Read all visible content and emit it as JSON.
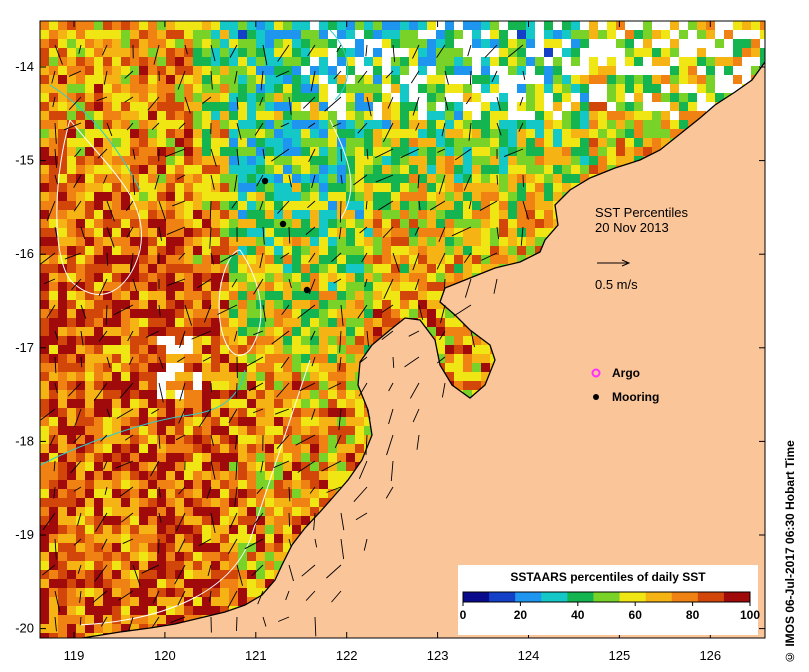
{
  "map": {
    "title": "SST Percentiles",
    "date": "20 Nov 2013",
    "vector_scale_label": "0.5 m/s",
    "legend": {
      "argo": "Argo",
      "mooring": "Mooring"
    },
    "colors": {
      "land": "#fbc59a",
      "no_data": "#ffffff",
      "coastline": "#000000",
      "contour_white": "#ffffff",
      "contour_cyan": "#2ad0d0",
      "argo": "#ff30ff",
      "mooring": "#000000"
    }
  },
  "axes": {
    "x_ticks": [
      "119",
      "120",
      "121",
      "122",
      "123",
      "124",
      "125",
      "126"
    ],
    "y_ticks": [
      "-14",
      "-15",
      "-16",
      "-17",
      "-18",
      "-19",
      "-20"
    ]
  },
  "colorbar": {
    "title": "SSTAARS percentiles of daily SST",
    "ticks": [
      "0",
      "20",
      "40",
      "60",
      "80",
      "100"
    ],
    "colors": [
      "#0a0a8c",
      "#1440c8",
      "#1e96f0",
      "#14c8c8",
      "#14b450",
      "#78d228",
      "#f0e614",
      "#f5b414",
      "#f08214",
      "#d2460a",
      "#a00a0a"
    ]
  },
  "credit": "© IMOS 06-Jul-2017 06:30 Hobart Time"
}
